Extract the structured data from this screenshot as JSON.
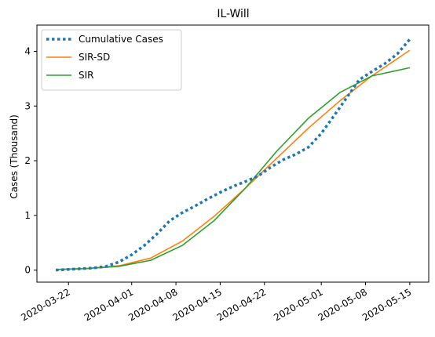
{
  "chart_data": {
    "type": "line",
    "title": "IL-Will",
    "xlabel": "",
    "ylabel": "Cases (Thousand)",
    "x_axis": "date",
    "xlim": [
      "2020-03-17",
      "2020-05-18"
    ],
    "ylim": [
      -0.22,
      4.48
    ],
    "grid": false,
    "legend_position": "top-left",
    "x_ticks": [
      "2020-03-22",
      "2020-04-01",
      "2020-04-08",
      "2020-04-15",
      "2020-04-22",
      "2020-05-01",
      "2020-05-08",
      "2020-05-15"
    ],
    "y_ticks": [
      0,
      1,
      2,
      3,
      4
    ],
    "series": [
      {
        "name": "Cumulative Cases",
        "color": "#1f77b4",
        "style": "dotted",
        "x": [
          "2020-03-20",
          "2020-03-23",
          "2020-03-26",
          "2020-03-28",
          "2020-03-30",
          "2020-04-01",
          "2020-04-03",
          "2020-04-05",
          "2020-04-07",
          "2020-04-09",
          "2020-04-11",
          "2020-04-13",
          "2020-04-15",
          "2020-04-17",
          "2020-04-19",
          "2020-04-21",
          "2020-04-23",
          "2020-04-25",
          "2020-04-27",
          "2020-04-29",
          "2020-05-01",
          "2020-05-03",
          "2020-05-05",
          "2020-05-07",
          "2020-05-09",
          "2020-05-11",
          "2020-05-13",
          "2020-05-15"
        ],
        "values": [
          0.0,
          0.02,
          0.04,
          0.07,
          0.15,
          0.28,
          0.45,
          0.66,
          0.9,
          1.05,
          1.17,
          1.3,
          1.42,
          1.53,
          1.62,
          1.72,
          1.88,
          2.02,
          2.12,
          2.25,
          2.5,
          2.82,
          3.15,
          3.48,
          3.63,
          3.77,
          3.95,
          4.22
        ]
      },
      {
        "name": "SIR-SD",
        "color": "#ff7f0e",
        "style": "solid",
        "x": [
          "2020-03-20",
          "2020-03-25",
          "2020-03-30",
          "2020-04-04",
          "2020-04-09",
          "2020-04-14",
          "2020-04-19",
          "2020-04-24",
          "2020-04-29",
          "2020-05-04",
          "2020-05-09",
          "2020-05-15"
        ],
        "values": [
          0.01,
          0.03,
          0.08,
          0.22,
          0.53,
          0.98,
          1.5,
          2.05,
          2.6,
          3.1,
          3.55,
          4.02
        ]
      },
      {
        "name": "SIR",
        "color": "#2ca02c",
        "style": "solid",
        "x": [
          "2020-03-20",
          "2020-03-25",
          "2020-03-30",
          "2020-04-04",
          "2020-04-09",
          "2020-04-14",
          "2020-04-19",
          "2020-04-24",
          "2020-04-29",
          "2020-05-04",
          "2020-05-09",
          "2020-05-15"
        ],
        "values": [
          0.01,
          0.03,
          0.07,
          0.18,
          0.45,
          0.9,
          1.5,
          2.18,
          2.78,
          3.25,
          3.55,
          3.7
        ]
      }
    ]
  }
}
